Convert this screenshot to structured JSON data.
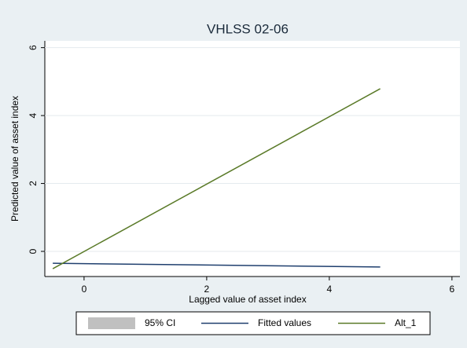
{
  "chart_data": {
    "type": "line",
    "title": "VHLSS 02-06",
    "x_label": "Lagged value of asset index",
    "y_label": "Predicted value of asset index",
    "xlim": [
      -0.64,
      6.13
    ],
    "xticks": [
      0,
      2,
      4,
      6
    ],
    "ylim": [
      -0.74,
      6.2
    ],
    "yticks": [
      0,
      2,
      4,
      6
    ],
    "grid": true,
    "series": [
      {
        "name": "95% CI",
        "color": "#c0c0c0"
      },
      {
        "name": "Fitted values",
        "color": "#1f3f6e",
        "x": [
          -0.51,
          4.83
        ],
        "values": [
          -0.35,
          -0.46
        ]
      },
      {
        "name": "Alt_1",
        "color": "#5a7a28",
        "x": [
          -0.51,
          4.83
        ],
        "values": [
          -0.51,
          4.79
        ]
      }
    ]
  }
}
